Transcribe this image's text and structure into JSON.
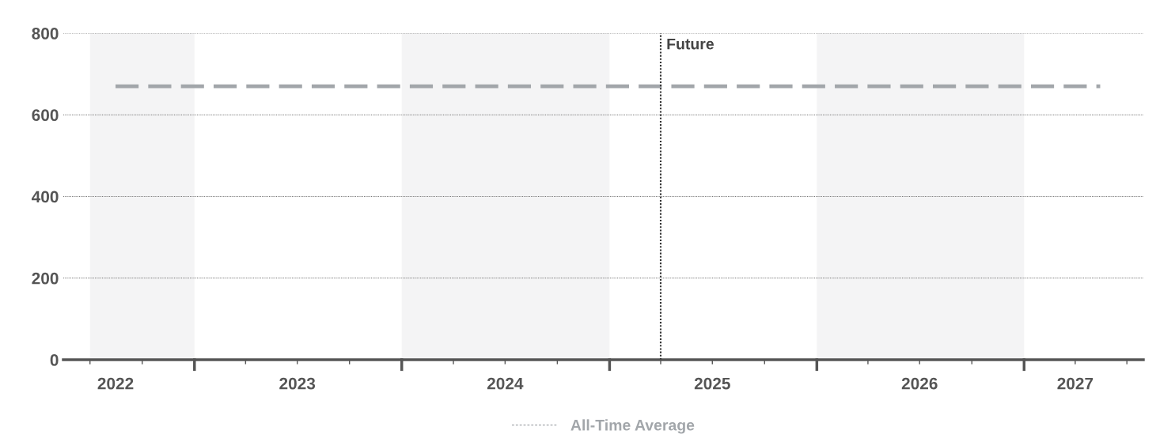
{
  "chart_data": {
    "type": "line",
    "x": [
      "2022-08-15",
      "2027-05-15"
    ],
    "series": [
      {
        "name": "All-Time Average",
        "color": "#a2a6aa",
        "values": [
          670,
          670
        ],
        "line_style": "dashed"
      }
    ],
    "xlim": [
      "2022-05-15",
      "2027-07-30"
    ],
    "xticks": [
      {
        "value": "2022-08-15",
        "label": "2022"
      },
      {
        "value": "2023-07-01",
        "label": "2023"
      },
      {
        "value": "2024-07-01",
        "label": "2024"
      },
      {
        "value": "2025-07-01",
        "label": "2025"
      },
      {
        "value": "2026-07-01",
        "label": "2026"
      },
      {
        "value": "2027-04-01",
        "label": "2027"
      }
    ],
    "ylim": [
      0,
      800
    ],
    "yticks": [
      0,
      200,
      400,
      600,
      800
    ],
    "grid": "y",
    "legend": "bottom",
    "ref_lines": [
      {
        "axis": "x",
        "value": "2025-04-01",
        "label": "Future",
        "color": "#333333",
        "line_style": "dotted"
      }
    ],
    "bands": [
      {
        "axis": "x",
        "from": "2022-07-01",
        "to": "2023-01-01",
        "color": "#f4f4f5"
      },
      {
        "axis": "x",
        "from": "2024-01-01",
        "to": "2025-01-01",
        "color": "#f4f4f5"
      },
      {
        "axis": "x",
        "from": "2026-01-01",
        "to": "2027-01-01",
        "color": "#f4f4f5"
      }
    ]
  }
}
